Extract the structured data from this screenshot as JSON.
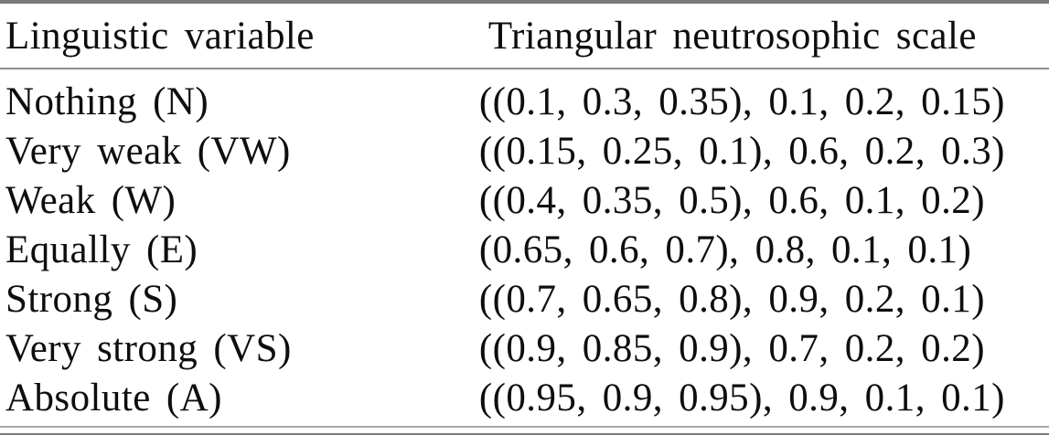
{
  "table": {
    "title": "Triangular neutrosophic scale table",
    "columns": [
      {
        "label": "Linguistic variable"
      },
      {
        "label": "Triangular neutrosophic scale"
      }
    ],
    "rows": [
      {
        "variable": "Nothing (N)",
        "scale": "((0.1, 0.3, 0.35), 0.1, 0.2, 0.15)"
      },
      {
        "variable": "Very weak (VW)",
        "scale": "((0.15, 0.25, 0.1), 0.6, 0.2, 0.3)"
      },
      {
        "variable": "Weak (W)",
        "scale": "((0.4, 0.35, 0.5), 0.6, 0.1, 0.2)"
      },
      {
        "variable": "Equally (E)",
        "scale": "(0.65, 0.6, 0.7), 0.8, 0.1, 0.1)"
      },
      {
        "variable": "Strong (S)",
        "scale": "((0.7, 0.65, 0.8), 0.9, 0.2, 0.1)"
      },
      {
        "variable": "Very strong (VS)",
        "scale": "((0.9, 0.85, 0.9), 0.7, 0.2, 0.2)"
      },
      {
        "variable": "Absolute (A)",
        "scale": "((0.95, 0.9, 0.95), 0.9, 0.1, 0.1)"
      }
    ],
    "colors": {
      "text": "#0e0e0e",
      "rule_thick": "#7b7b7b",
      "rule_thin": "#8f8f8f",
      "background": "#ffffff"
    }
  },
  "chart_data": {
    "type": "table",
    "title": "Triangular neutrosophic scale",
    "columns": [
      "Linguistic variable",
      "Triangular neutrosophic scale"
    ],
    "rows": [
      [
        "Nothing (N)",
        "((0.1, 0.3, 0.35), 0.1, 0.2, 0.15)"
      ],
      [
        "Very weak (VW)",
        "((0.15, 0.25, 0.1), 0.6, 0.2, 0.3)"
      ],
      [
        "Weak (W)",
        "((0.4, 0.35, 0.5), 0.6, 0.1, 0.2)"
      ],
      [
        "Equally (E)",
        "(0.65, 0.6, 0.7), 0.8, 0.1, 0.1)"
      ],
      [
        "Strong (S)",
        "((0.7, 0.65, 0.8), 0.9, 0.2, 0.1)"
      ],
      [
        "Very strong (VS)",
        "((0.9, 0.85, 0.9), 0.7, 0.2, 0.2)"
      ],
      [
        "Absolute (A)",
        "((0.95, 0.9, 0.95), 0.9, 0.1, 0.1)"
      ]
    ]
  }
}
